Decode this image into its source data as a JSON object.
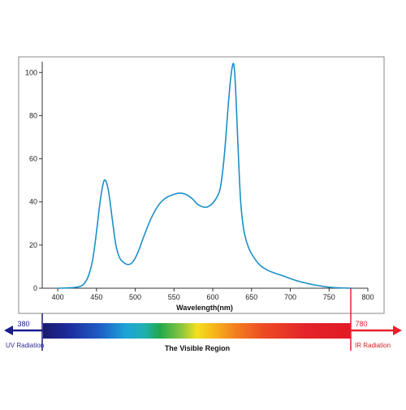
{
  "chart_data": {
    "type": "line",
    "title": "",
    "xlabel": "Wavelength(nm)",
    "ylabel": "",
    "xlim": [
      380,
      800
    ],
    "ylim": [
      0,
      105
    ],
    "xticks": [
      400,
      450,
      500,
      550,
      600,
      650,
      700,
      750,
      800
    ],
    "yticks": [
      0,
      20,
      40,
      60,
      80,
      100
    ],
    "grid": false,
    "legend": "none",
    "series": [
      {
        "color": "#1c8fc9",
        "x": [
          400,
          420,
          430,
          435,
          440,
          445,
          450,
          455,
          460,
          465,
          470,
          475,
          480,
          485,
          490,
          495,
          500,
          505,
          510,
          520,
          530,
          540,
          550,
          555,
          560,
          565,
          570,
          575,
          580,
          585,
          590,
          595,
          600,
          605,
          610,
          615,
          620,
          623,
          626,
          628,
          630,
          633,
          636,
          640,
          645,
          650,
          660,
          670,
          680,
          690,
          700,
          710,
          720,
          730,
          740,
          750,
          760,
          770,
          780
        ],
        "y": [
          0,
          0.3,
          1,
          2.5,
          6,
          13,
          26,
          41,
          50,
          46,
          33,
          20,
          14,
          12,
          11,
          11.5,
          14,
          18,
          23,
          32,
          38.5,
          42,
          43.5,
          44,
          44,
          43.5,
          42.5,
          41,
          39,
          38,
          37.5,
          38,
          39.5,
          42,
          47,
          62,
          85,
          97,
          104,
          101,
          88,
          62,
          40,
          27,
          20,
          16,
          11,
          8.5,
          7,
          5.8,
          4.5,
          3.3,
          2.4,
          1.6,
          1,
          0.5,
          0.2,
          0.1,
          0
        ]
      }
    ],
    "visible_region": {
      "title": "The Visible Region",
      "start": 380,
      "end": 780,
      "start_label": "380",
      "end_label": "780",
      "uv_label": "UV Radiation",
      "ir_label": "IR Radiation",
      "uv_color": "#1a1a8c",
      "ir_color": "#e8202a"
    }
  }
}
